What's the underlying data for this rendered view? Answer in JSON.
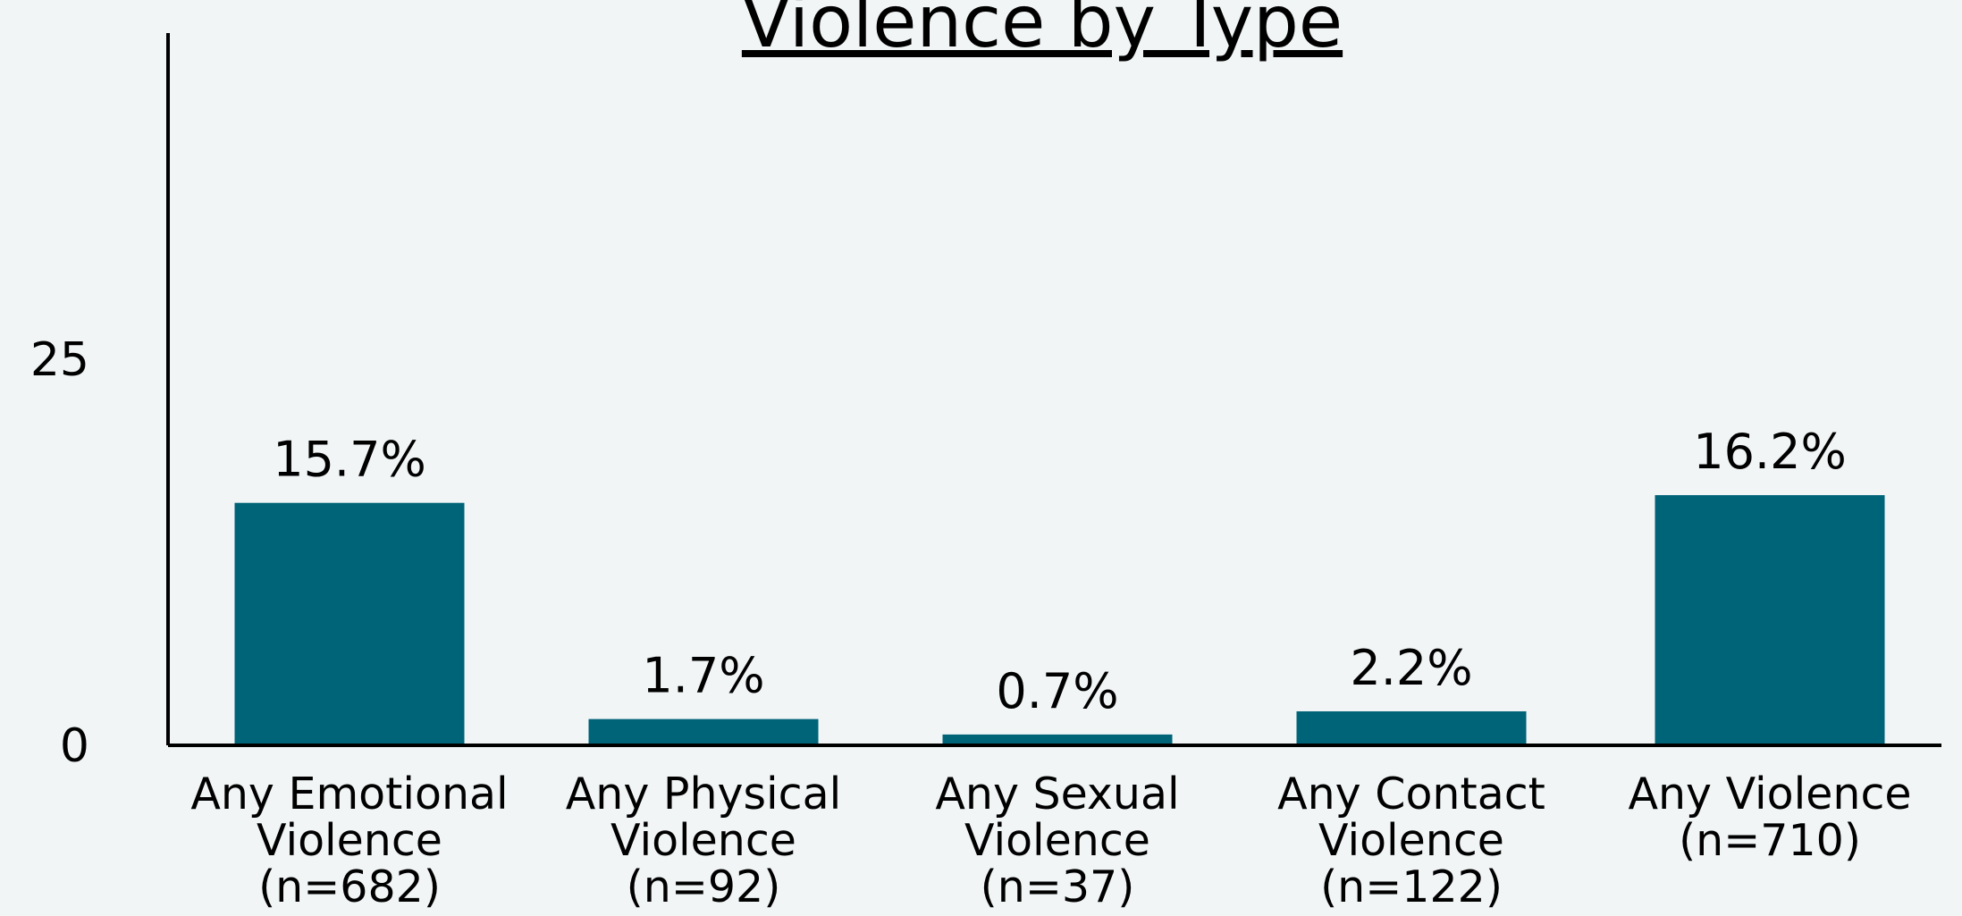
{
  "chart_data": {
    "type": "bar",
    "title": "Violence by Type",
    "categories": [
      [
        "Any Emotional",
        "Violence",
        "(n=682)"
      ],
      [
        "Any Physical",
        "Violence",
        "(n=92)"
      ],
      [
        "Any Sexual",
        "Violence",
        "(n=37)"
      ],
      [
        "Any Contact",
        "Violence",
        "(n=122)"
      ],
      [
        "Any Violence",
        "(n=710)"
      ]
    ],
    "values": [
      15.7,
      1.7,
      0.7,
      2.2,
      16.2
    ],
    "value_labels": [
      "15.7%",
      "1.7%",
      "0.7%",
      "2.2%",
      "16.2%"
    ],
    "yticks": [
      0,
      25
    ],
    "ytick_labels": [
      "0",
      "25"
    ],
    "ylim": [
      0,
      46
    ],
    "xlabel": "",
    "ylabel": "",
    "grid": false,
    "legend": "none",
    "bar_color": "#006478",
    "background_color": "#f1f5f6"
  }
}
